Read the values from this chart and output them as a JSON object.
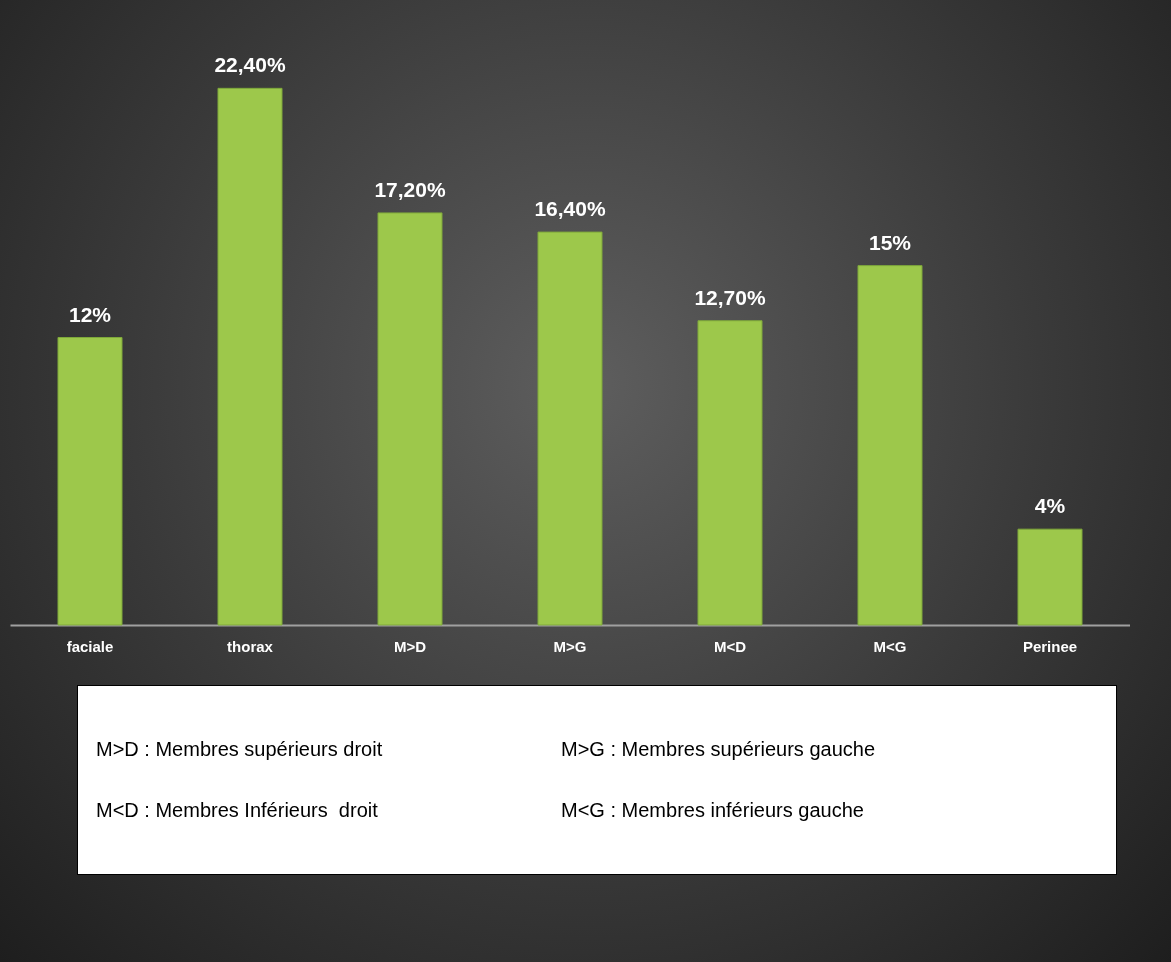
{
  "chart_data": {
    "type": "bar",
    "categories": [
      "faciale",
      "thorax",
      "M>D",
      "M>G",
      "M<D",
      "M<G",
      "Perinee"
    ],
    "values": [
      12,
      22.4,
      17.2,
      16.4,
      12.7,
      15,
      4
    ],
    "value_labels": [
      "12%",
      "22,40%",
      "17,20%",
      "16,40%",
      "12,70%",
      "15%",
      "4%"
    ],
    "color": "#9dc84b",
    "grid": false,
    "tick_labels": "x",
    "annotations": [
      "M>D : Membres supérieurs droit",
      "M>G : Membres supérieurs gauche",
      "M<D : Membres Inférieurs  droit",
      "M<G : Membres inférieurs gauche"
    ]
  }
}
